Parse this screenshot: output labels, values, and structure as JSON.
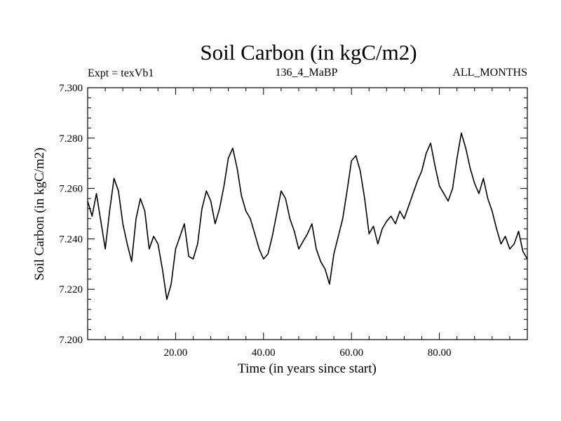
{
  "chart_data": {
    "type": "line",
    "title": "Soil Carbon (in kgC/m2)",
    "subtitle_left": "Expt = texVb1",
    "subtitle_center": "136_4_MaBP",
    "subtitle_right": "ALL_MONTHS",
    "xlabel": "Time (in years since start)",
    "ylabel": "Soil Carbon (in kgC/m2)",
    "xlim": [
      0,
      100
    ],
    "ylim": [
      7.2,
      7.3
    ],
    "xticks": [
      20,
      40,
      60,
      80
    ],
    "xtick_labels": [
      "20.00",
      "40.00",
      "60.00",
      "80.00"
    ],
    "yticks": [
      7.2,
      7.22,
      7.24,
      7.26,
      7.28,
      7.3
    ],
    "ytick_labels": [
      "7.200",
      "7.220",
      "7.240",
      "7.260",
      "7.280",
      "7.300"
    ],
    "grid": false,
    "series": [
      {
        "name": "Soil Carbon",
        "color": "#000000",
        "x": [
          0,
          1,
          2,
          3,
          4,
          5,
          6,
          7,
          8,
          9,
          10,
          11,
          12,
          13,
          14,
          15,
          16,
          17,
          18,
          19,
          20,
          21,
          22,
          23,
          24,
          25,
          26,
          27,
          28,
          29,
          30,
          31,
          32,
          33,
          34,
          35,
          36,
          37,
          38,
          39,
          40,
          41,
          42,
          43,
          44,
          45,
          46,
          47,
          48,
          49,
          50,
          51,
          52,
          53,
          54,
          55,
          56,
          57,
          58,
          59,
          60,
          61,
          62,
          63,
          64,
          65,
          66,
          67,
          68,
          69,
          70,
          71,
          72,
          73,
          74,
          75,
          76,
          77,
          78,
          79,
          80,
          81,
          82,
          83,
          84,
          85,
          86,
          87,
          88,
          89,
          90,
          91,
          92,
          93,
          94,
          95,
          96,
          97,
          98,
          99,
          100
        ],
        "values": [
          7.255,
          7.249,
          7.258,
          7.247,
          7.236,
          7.251,
          7.264,
          7.259,
          7.246,
          7.238,
          7.231,
          7.248,
          7.256,
          7.251,
          7.236,
          7.241,
          7.238,
          7.228,
          7.216,
          7.222,
          7.236,
          7.241,
          7.246,
          7.233,
          7.232,
          7.238,
          7.252,
          7.259,
          7.255,
          7.246,
          7.252,
          7.261,
          7.272,
          7.276,
          7.268,
          7.257,
          7.251,
          7.248,
          7.242,
          7.236,
          7.232,
          7.234,
          7.241,
          7.25,
          7.259,
          7.256,
          7.248,
          7.243,
          7.236,
          7.239,
          7.242,
          7.246,
          7.236,
          7.231,
          7.228,
          7.222,
          7.234,
          7.241,
          7.248,
          7.259,
          7.271,
          7.273,
          7.267,
          7.256,
          7.242,
          7.245,
          7.238,
          7.244,
          7.247,
          7.249,
          7.246,
          7.251,
          7.248,
          7.253,
          7.258,
          7.263,
          7.267,
          7.274,
          7.278,
          7.269,
          7.261,
          7.258,
          7.255,
          7.26,
          7.272,
          7.282,
          7.276,
          7.268,
          7.262,
          7.258,
          7.264,
          7.256,
          7.251,
          7.244,
          7.238,
          7.241,
          7.236,
          7.238,
          7.243,
          7.235,
          7.232
        ]
      }
    ]
  }
}
